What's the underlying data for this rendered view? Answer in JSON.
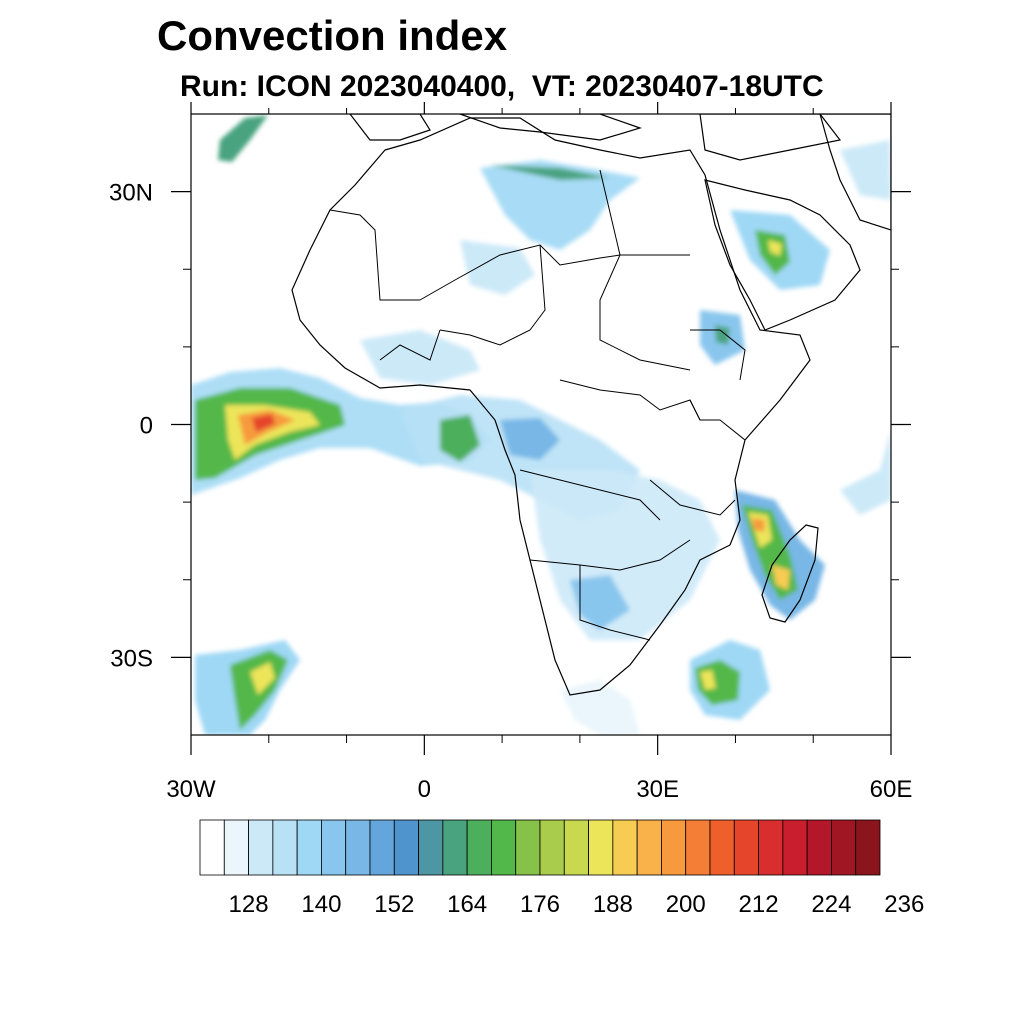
{
  "title": "Convection index",
  "subtitle": "Run: ICON 2023040400,  VT: 20230407-18UTC",
  "map": {
    "lon_range": [
      -30,
      60
    ],
    "lat_range": [
      -40,
      40
    ],
    "x_tick_labels": [
      "30W",
      "0",
      "30E",
      "60E"
    ],
    "y_tick_labels": [
      "30N",
      "0",
      "30S"
    ]
  },
  "colorbar": {
    "colors": [
      "#ffffff",
      "#eaf6fc",
      "#cce9f8",
      "#b8e1f6",
      "#9fd8f5",
      "#89c6ed",
      "#78b7e6",
      "#64a6dc",
      "#4f94cc",
      "#4d97a4",
      "#4aa37f",
      "#4caf5c",
      "#52b84a",
      "#86c24a",
      "#aacc4c",
      "#c9d94f",
      "#ece55a",
      "#f7cc53",
      "#f9b24a",
      "#f79a3e",
      "#f47e35",
      "#ef5f2c",
      "#e4452b",
      "#d82e2e",
      "#c91e2e",
      "#b4172a",
      "#a01622",
      "#8b151c"
    ],
    "labels": [
      "128",
      "140",
      "152",
      "164",
      "176",
      "188",
      "200",
      "212",
      "224",
      "236"
    ]
  }
}
